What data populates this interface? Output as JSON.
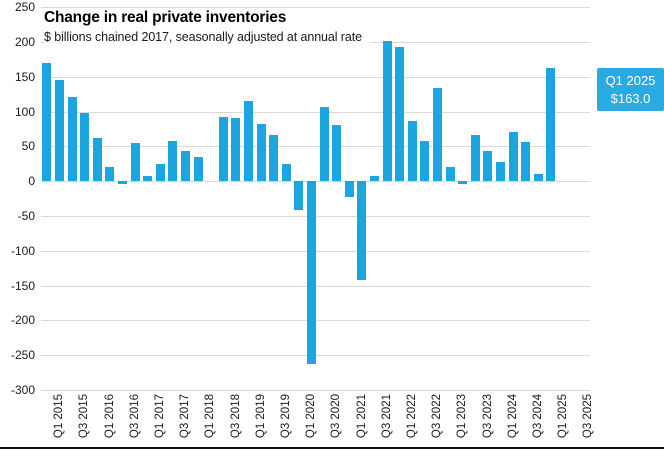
{
  "chart_data": {
    "type": "bar",
    "title": "Change in real private inventories",
    "subtitle": "$ billions chained 2017, seasonally adjusted at annual rate",
    "xlabel": "",
    "ylabel": "",
    "ylim": [
      -300,
      250
    ],
    "y_ticks": [
      250,
      200,
      150,
      100,
      50,
      0,
      -50,
      -100,
      -150,
      -200,
      -250,
      -300
    ],
    "grid": "horizontal",
    "legend": "none",
    "bar_color": "#1CA6E0",
    "start_quarter": "Q1 2015",
    "end_quarter": "Q1 2025",
    "values": [
      169,
      145,
      121,
      98,
      62,
      20,
      -4,
      55,
      8,
      25,
      57,
      43,
      34,
      0,
      92,
      90,
      115,
      82,
      66,
      25,
      -41,
      -263,
      106,
      80,
      -23,
      -142,
      8,
      201,
      193,
      86,
      57,
      134,
      20,
      -4,
      66,
      43,
      27,
      70,
      56,
      10,
      163
    ],
    "x_tick_labels": [
      "Q1 2015",
      "Q3 2015",
      "Q1 2016",
      "Q3 2016",
      "Q1 2017",
      "Q3 2017",
      "Q1 2018",
      "Q3 2018",
      "Q1 2019",
      "Q3 2019",
      "Q1 2020",
      "Q3 2020",
      "Q1 2021",
      "Q3 2021",
      "Q1 2022",
      "Q3 2022",
      "Q1 2023",
      "Q3 2023",
      "Q1 2024",
      "Q3 2024",
      "Q1 2025",
      "Q3 2025"
    ],
    "annotation": {
      "label": "Q1 2025",
      "value_label": "$163.0",
      "value": 163.0,
      "bg_color": "#29ABE2",
      "text_color": "#FFFFFF"
    }
  },
  "colors": {
    "bar": "#1CA6E0",
    "gridline": "#D9D9D9",
    "axis_text": "#1A1A1A",
    "title_text": "#000000",
    "bottom_rule": "#111111"
  }
}
